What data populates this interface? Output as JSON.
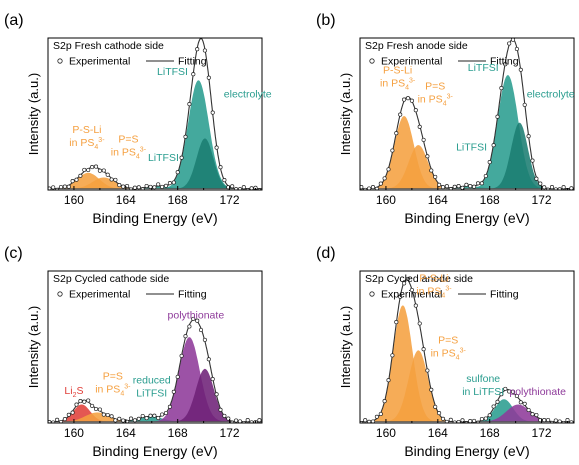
{
  "figure": {
    "colors": {
      "orange": "#f5a040",
      "orange_dark": "#e07010",
      "teal": "#2a9d8f",
      "teal_dark": "#1b7d72",
      "purple": "#8e3a9a",
      "purple_dark": "#6e2177",
      "red": "#e0403a",
      "envelope": "#333333",
      "axis": "#000000"
    }
  },
  "chart_data": [
    {
      "panel_label": "(a)",
      "title": "S2p Fresh cathode side",
      "legend": {
        "experimental": "Experimental",
        "fitting": "Fitting"
      },
      "type": "area",
      "xlabel": "Binding Energy (eV)",
      "ylabel": "Intensity (a.u.)",
      "xlim": [
        158,
        174.5
      ],
      "ylim": [
        0,
        1.15
      ],
      "xticks": [
        160,
        164,
        168,
        172
      ],
      "grid": false,
      "baseline": 0.01,
      "peaks": [
        {
          "center": 161.1,
          "height": 0.12,
          "width": 0.85,
          "color": "orange"
        },
        {
          "center": 162.3,
          "height": 0.085,
          "width": 0.85,
          "color": "orange"
        },
        {
          "center": 166.6,
          "height": 0.02,
          "width": 0.9,
          "color": "teal"
        },
        {
          "center": 169.6,
          "height": 0.82,
          "width": 0.8,
          "color": "teal"
        },
        {
          "center": 170.1,
          "height": 0.38,
          "width": 0.65,
          "color": "teal_dark"
        }
      ],
      "annotations": [
        {
          "lines": [
            "P-S-Li",
            "in PS<sub>4</sub><sup>3-</sup>"
          ],
          "x": 161.0,
          "y": 0.43,
          "color": "orange",
          "anchor": "middle"
        },
        {
          "lines": [
            "P=S",
            "in PS<sub>4</sub><sup>3-</sup>"
          ],
          "x": 164.2,
          "y": 0.36,
          "color": "orange",
          "anchor": "middle"
        },
        {
          "lines": [
            "LiTFSI"
          ],
          "x": 166.9,
          "y": 0.22,
          "color": "teal",
          "anchor": "middle"
        },
        {
          "lines": [
            "LiTFSI"
          ],
          "x": 167.6,
          "y": 0.87,
          "color": "teal",
          "anchor": "middle"
        },
        {
          "lines": [
            "electrolyte"
          ],
          "x": 173.4,
          "y": 0.7,
          "color": "teal",
          "anchor": "middle"
        }
      ]
    },
    {
      "panel_label": "(b)",
      "title": "S2p Fresh anode side",
      "legend": {
        "experimental": "Experimental",
        "fitting": "Fitting"
      },
      "type": "area",
      "xlabel": "Binding Energy (eV)",
      "ylabel": "Intensity (a.u.)",
      "xlim": [
        158,
        174.5
      ],
      "ylim": [
        0,
        1.15
      ],
      "xticks": [
        160,
        164,
        168,
        172
      ],
      "grid": false,
      "baseline": 0.01,
      "peaks": [
        {
          "center": 161.4,
          "height": 0.55,
          "width": 0.75,
          "color": "orange"
        },
        {
          "center": 162.5,
          "height": 0.33,
          "width": 0.75,
          "color": "orange"
        },
        {
          "center": 166.4,
          "height": 0.02,
          "width": 0.9,
          "color": "teal"
        },
        {
          "center": 169.4,
          "height": 0.86,
          "width": 0.8,
          "color": "teal"
        },
        {
          "center": 170.3,
          "height": 0.5,
          "width": 0.65,
          "color": "teal_dark"
        }
      ],
      "annotations": [
        {
          "lines": [
            "P-S-Li",
            "in PS<sub>4</sub><sup>3-</sup>"
          ],
          "x": 160.9,
          "y": 0.88,
          "color": "orange",
          "anchor": "middle"
        },
        {
          "lines": [
            "P=S",
            "in PS<sub>4</sub><sup>3-</sup>"
          ],
          "x": 163.8,
          "y": 0.76,
          "color": "orange",
          "anchor": "middle"
        },
        {
          "lines": [
            "LiTFSI"
          ],
          "x": 166.6,
          "y": 0.3,
          "color": "teal",
          "anchor": "middle"
        },
        {
          "lines": [
            "LiTFSI"
          ],
          "x": 167.5,
          "y": 0.9,
          "color": "teal",
          "anchor": "middle"
        },
        {
          "lines": [
            "electrolyte"
          ],
          "x": 172.7,
          "y": 0.7,
          "color": "teal",
          "anchor": "middle"
        }
      ]
    },
    {
      "panel_label": "(c)",
      "title": "S2p Cycled cathode side",
      "legend": {
        "experimental": "Experimental",
        "fitting": "Fitting"
      },
      "type": "area",
      "xlabel": "Binding Energy (eV)",
      "ylabel": "Intensity (a.u.)",
      "xlim": [
        158,
        174.5
      ],
      "ylim": [
        0,
        1.15
      ],
      "xticks": [
        160,
        164,
        168,
        172
      ],
      "grid": false,
      "baseline": 0.01,
      "peaks": [
        {
          "center": 160.6,
          "height": 0.13,
          "width": 0.65,
          "color": "red"
        },
        {
          "center": 161.8,
          "height": 0.07,
          "width": 0.9,
          "color": "orange"
        },
        {
          "center": 165.9,
          "height": 0.04,
          "width": 0.9,
          "color": "teal"
        },
        {
          "center": 168.9,
          "height": 0.64,
          "width": 0.8,
          "color": "purple"
        },
        {
          "center": 170.1,
          "height": 0.4,
          "width": 0.7,
          "color": "purple_dark"
        }
      ],
      "annotations": [
        {
          "lines": [
            "Li<sub>2</sub>S"
          ],
          "x": 160.0,
          "y": 0.22,
          "color": "red",
          "anchor": "middle"
        },
        {
          "lines": [
            "P=S",
            "in PS<sub>4</sub><sup>3-</sup>"
          ],
          "x": 163.0,
          "y": 0.33,
          "color": "orange",
          "anchor": "middle"
        },
        {
          "lines": [
            "reduced",
            "LiTFSI"
          ],
          "x": 166.0,
          "y": 0.3,
          "color": "teal",
          "anchor": "middle"
        },
        {
          "lines": [
            "polythionate"
          ],
          "x": 169.4,
          "y": 0.79,
          "color": "purple",
          "anchor": "middle"
        }
      ]
    },
    {
      "panel_label": "(d)",
      "title": "S2p Cycled anode side",
      "legend": {
        "experimental": "Experimental",
        "fitting": "Fitting"
      },
      "type": "area",
      "xlabel": "Binding Energy (eV)",
      "ylabel": "Intensity (a.u.)",
      "xlim": [
        158,
        174.5
      ],
      "ylim": [
        0,
        1.15
      ],
      "xticks": [
        160,
        164,
        168,
        172
      ],
      "grid": false,
      "baseline": 0.01,
      "peaks": [
        {
          "center": 161.3,
          "height": 0.88,
          "width": 0.75,
          "color": "orange"
        },
        {
          "center": 162.5,
          "height": 0.54,
          "width": 0.75,
          "color": "orange"
        },
        {
          "center": 169.1,
          "height": 0.17,
          "width": 0.7,
          "color": "teal"
        },
        {
          "center": 170.2,
          "height": 0.13,
          "width": 0.9,
          "color": "purple"
        }
      ],
      "annotations": [
        {
          "lines": [
            "P-S-Li",
            "in PS<sub>4</sub><sup>3-</sup>"
          ],
          "x": 163.7,
          "y": 1.07,
          "color": "orange",
          "anchor": "middle"
        },
        {
          "lines": [
            "P=S",
            "in PS<sub>4</sub><sup>3-</sup>"
          ],
          "x": 164.8,
          "y": 0.6,
          "color": "orange",
          "anchor": "middle"
        },
        {
          "lines": [
            "sulfone",
            "in LiTFSI"
          ],
          "x": 167.5,
          "y": 0.31,
          "color": "teal",
          "anchor": "middle"
        },
        {
          "lines": [
            "polythionate"
          ],
          "x": 171.7,
          "y": 0.21,
          "color": "purple",
          "anchor": "middle"
        }
      ]
    }
  ]
}
